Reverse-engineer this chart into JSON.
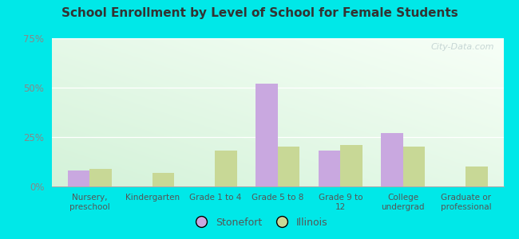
{
  "title": "School Enrollment by Level of School for Female Students",
  "categories": [
    "Nursery,\npreschool",
    "Kindergarten",
    "Grade 1 to 4",
    "Grade 5 to 8",
    "Grade 9 to\n12",
    "College\nundergrad",
    "Graduate or\nprofessional"
  ],
  "stonefort": [
    8,
    0,
    0,
    52,
    18,
    27,
    0
  ],
  "illinois": [
    9,
    7,
    18,
    20,
    21,
    20,
    10
  ],
  "stonefort_color": "#c9a8e0",
  "illinois_color": "#c8d896",
  "bar_width": 0.35,
  "ylim": [
    0,
    75
  ],
  "yticks": [
    0,
    25,
    50,
    75
  ],
  "ytick_labels": [
    "0%",
    "25%",
    "50%",
    "75%"
  ],
  "background_color": "#00e8e8",
  "legend_stonefort": "Stonefort",
  "legend_illinois": "Illinois",
  "watermark": "City-Data.com"
}
